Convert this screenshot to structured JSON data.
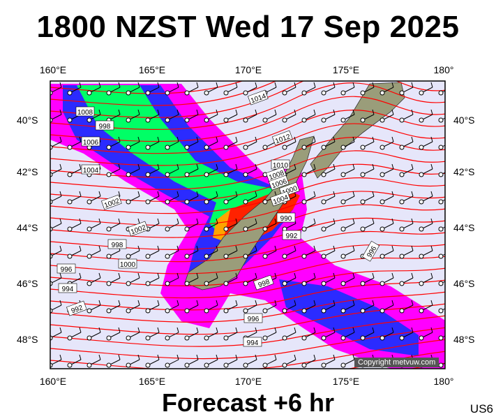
{
  "title": "1800 NZST Wed 17 Sep 2025",
  "footer": "Forecast +6 hr",
  "code": "US6",
  "copyright": "Copyright metvuw.com",
  "lon_labels": [
    "160°E",
    "165°E",
    "170°E",
    "175°E",
    "180°"
  ],
  "lat_labels": [
    "40°S",
    "42°S",
    "44°S",
    "46°S",
    "48°S"
  ],
  "isobar_labels": [
    "1014",
    "1012",
    "1010",
    "1008",
    "1006",
    "1004",
    "1002",
    "1000",
    "998",
    "996",
    "994",
    "992",
    "990",
    "1008",
    "1006",
    "1004",
    "1002",
    "1000",
    "998",
    "996",
    "994",
    "992",
    "996",
    "998"
  ],
  "colors": {
    "sea": "#e6e6fa",
    "isobar": "#ff0000",
    "land": "#9a9d7a",
    "rain_light": "#ff00ff",
    "rain_moderate": "#2b2bff",
    "rain_heavy": "#00ff66",
    "rain_intense": "#ff2200"
  }
}
